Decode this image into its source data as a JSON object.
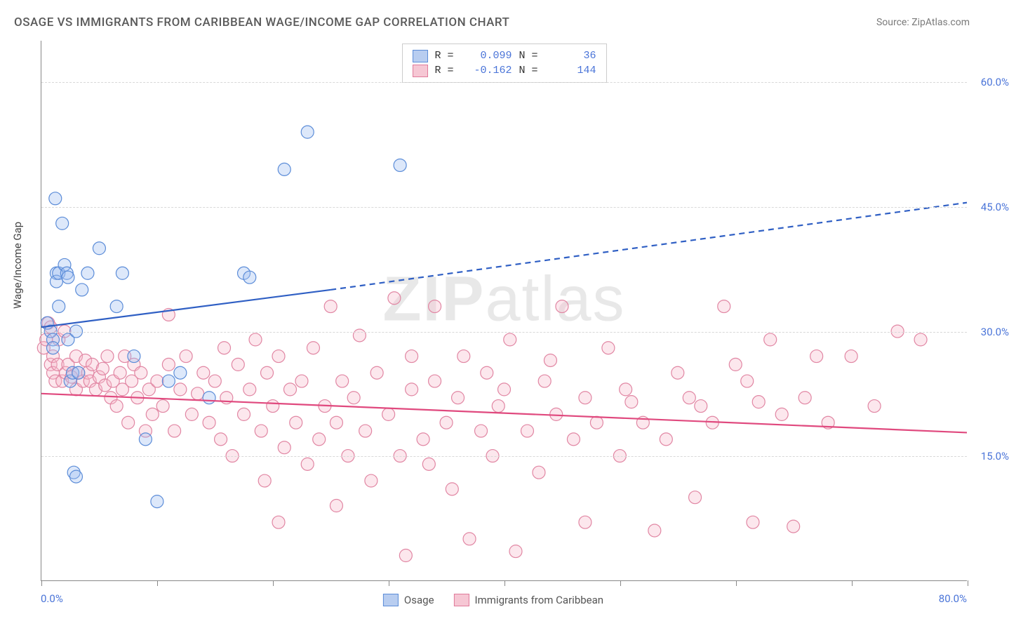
{
  "title": "OSAGE VS IMMIGRANTS FROM CARIBBEAN WAGE/INCOME GAP CORRELATION CHART",
  "source_label": "Source: ZipAtlas.com",
  "watermark": "ZIPatlas",
  "y_axis_label": "Wage/Income Gap",
  "chart": {
    "type": "scatter",
    "background_color": "#ffffff",
    "grid_color": "#d8d8d8",
    "axis_color": "#888888",
    "xlim": [
      0,
      80
    ],
    "ylim": [
      0,
      65
    ],
    "x_origin_label": "0.0%",
    "x_max_label": "80.0%",
    "x_ticks": [
      0,
      10,
      20,
      30,
      40,
      50,
      60,
      70,
      80
    ],
    "y_ticks": [
      {
        "v": 15,
        "label": "15.0%"
      },
      {
        "v": 30,
        "label": "30.0%"
      },
      {
        "v": 45,
        "label": "45.0%"
      },
      {
        "v": 60,
        "label": "60.0%"
      }
    ],
    "marker_radius": 9,
    "series": {
      "blue": {
        "name": "Osage",
        "R": "0.099",
        "N": "36",
        "fill": "#9fbef0",
        "stroke": "#5b8cd8",
        "trend": {
          "solid": [
            [
              0,
              30.5
            ],
            [
              25,
              35.0
            ]
          ],
          "dashed": [
            [
              25,
              35.0
            ],
            [
              80,
              45.5
            ]
          ],
          "color": "#2f5fc4",
          "width": 2.2
        },
        "points": [
          [
            0.5,
            31
          ],
          [
            0.8,
            30
          ],
          [
            1.0,
            29
          ],
          [
            1.0,
            28
          ],
          [
            1.2,
            46
          ],
          [
            1.3,
            37
          ],
          [
            1.3,
            36
          ],
          [
            1.5,
            37
          ],
          [
            1.5,
            33
          ],
          [
            1.8,
            43
          ],
          [
            2.0,
            38
          ],
          [
            2.2,
            37
          ],
          [
            2.3,
            36.5
          ],
          [
            2.3,
            29
          ],
          [
            2.5,
            24
          ],
          [
            2.7,
            25
          ],
          [
            2.8,
            13
          ],
          [
            3.0,
            12.5
          ],
          [
            3.0,
            30
          ],
          [
            3.2,
            25
          ],
          [
            3.5,
            35
          ],
          [
            4.0,
            37
          ],
          [
            5.0,
            40
          ],
          [
            6.5,
            33
          ],
          [
            7.0,
            37
          ],
          [
            8.0,
            27
          ],
          [
            9.0,
            17
          ],
          [
            10.0,
            9.5
          ],
          [
            11.0,
            24
          ],
          [
            12.0,
            25
          ],
          [
            14.5,
            22
          ],
          [
            17.5,
            37
          ],
          [
            18.0,
            36.5
          ],
          [
            21.0,
            49.5
          ],
          [
            23.0,
            54
          ],
          [
            31.0,
            50
          ]
        ]
      },
      "pink": {
        "name": "Immigrants from Caribbean",
        "R": "-0.162",
        "N": "144",
        "fill": "#f5b9cb",
        "stroke": "#e186a3",
        "trend": {
          "solid": [
            [
              0,
              22.5
            ],
            [
              80,
              17.8
            ]
          ],
          "color": "#e0497e",
          "width": 2.2
        },
        "points": [
          [
            0.2,
            28
          ],
          [
            0.4,
            29
          ],
          [
            0.6,
            31
          ],
          [
            0.8,
            30.5
          ],
          [
            0.8,
            26
          ],
          [
            1.0,
            27
          ],
          [
            1.0,
            25
          ],
          [
            1.2,
            24
          ],
          [
            1.4,
            26
          ],
          [
            1.5,
            29
          ],
          [
            1.8,
            24
          ],
          [
            2.0,
            30
          ],
          [
            2.1,
            25
          ],
          [
            2.3,
            26
          ],
          [
            2.6,
            24.5
          ],
          [
            3.0,
            23
          ],
          [
            3.0,
            27
          ],
          [
            3.2,
            25
          ],
          [
            3.6,
            24
          ],
          [
            3.8,
            26.5
          ],
          [
            4.0,
            25
          ],
          [
            4.2,
            24
          ],
          [
            4.4,
            26
          ],
          [
            4.7,
            23
          ],
          [
            5.0,
            24.5
          ],
          [
            5.3,
            25.5
          ],
          [
            5.5,
            23.5
          ],
          [
            5.7,
            27
          ],
          [
            6.0,
            22
          ],
          [
            6.2,
            24
          ],
          [
            6.5,
            21
          ],
          [
            6.8,
            25
          ],
          [
            7.0,
            23
          ],
          [
            7.2,
            27
          ],
          [
            7.5,
            19
          ],
          [
            7.8,
            24
          ],
          [
            8.0,
            26
          ],
          [
            8.3,
            22
          ],
          [
            8.6,
            25
          ],
          [
            9.0,
            18
          ],
          [
            9.3,
            23
          ],
          [
            9.6,
            20
          ],
          [
            10.0,
            24
          ],
          [
            10.5,
            21
          ],
          [
            11.0,
            26
          ],
          [
            11.0,
            32
          ],
          [
            11.5,
            18
          ],
          [
            12.0,
            23
          ],
          [
            12.5,
            27
          ],
          [
            13.0,
            20
          ],
          [
            13.5,
            22.5
          ],
          [
            14.0,
            25
          ],
          [
            14.5,
            19
          ],
          [
            15.0,
            24
          ],
          [
            15.5,
            17
          ],
          [
            15.8,
            28
          ],
          [
            16.0,
            22
          ],
          [
            16.5,
            15
          ],
          [
            17.0,
            26
          ],
          [
            17.5,
            20
          ],
          [
            18.0,
            23
          ],
          [
            18.5,
            29
          ],
          [
            19.0,
            18
          ],
          [
            19.3,
            12
          ],
          [
            19.5,
            25
          ],
          [
            20.0,
            21
          ],
          [
            20.5,
            7
          ],
          [
            20.5,
            27
          ],
          [
            21.0,
            16
          ],
          [
            21.5,
            23
          ],
          [
            22.0,
            19
          ],
          [
            22.5,
            24
          ],
          [
            23.0,
            14
          ],
          [
            23.5,
            28
          ],
          [
            24.0,
            17
          ],
          [
            24.5,
            21
          ],
          [
            25.0,
            33
          ],
          [
            25.5,
            19
          ],
          [
            25.5,
            9
          ],
          [
            26.0,
            24
          ],
          [
            26.5,
            15
          ],
          [
            27.0,
            22
          ],
          [
            27.5,
            29.5
          ],
          [
            28.0,
            18
          ],
          [
            28.5,
            12
          ],
          [
            29.0,
            25
          ],
          [
            30.0,
            20
          ],
          [
            30.5,
            34
          ],
          [
            31.0,
            15
          ],
          [
            31.5,
            3
          ],
          [
            32.0,
            23
          ],
          [
            32.0,
            27
          ],
          [
            33.0,
            17
          ],
          [
            33.5,
            14
          ],
          [
            34.0,
            33
          ],
          [
            34.0,
            24
          ],
          [
            35.0,
            19
          ],
          [
            35.5,
            11
          ],
          [
            36.0,
            22
          ],
          [
            36.5,
            27
          ],
          [
            37.0,
            5
          ],
          [
            38.0,
            18
          ],
          [
            38.5,
            25
          ],
          [
            39.0,
            15
          ],
          [
            39.5,
            21
          ],
          [
            40.0,
            23
          ],
          [
            40.5,
            29
          ],
          [
            41.0,
            3.5
          ],
          [
            42.0,
            18
          ],
          [
            43.0,
            13
          ],
          [
            43.5,
            24
          ],
          [
            44.0,
            26.5
          ],
          [
            44.5,
            20
          ],
          [
            45.0,
            33
          ],
          [
            46.0,
            17
          ],
          [
            47.0,
            22
          ],
          [
            47.0,
            7
          ],
          [
            48.0,
            19
          ],
          [
            49.0,
            28
          ],
          [
            50.0,
            15
          ],
          [
            50.5,
            23
          ],
          [
            51.0,
            21.5
          ],
          [
            52.0,
            19
          ],
          [
            53.0,
            6
          ],
          [
            54.0,
            17
          ],
          [
            55.0,
            25
          ],
          [
            56.0,
            22
          ],
          [
            56.5,
            10
          ],
          [
            57.0,
            21
          ],
          [
            58.0,
            19
          ],
          [
            59.0,
            33
          ],
          [
            60.0,
            26
          ],
          [
            61.0,
            24
          ],
          [
            61.5,
            7
          ],
          [
            62.0,
            21.5
          ],
          [
            63.0,
            29
          ],
          [
            64.0,
            20
          ],
          [
            65.0,
            6.5
          ],
          [
            66.0,
            22
          ],
          [
            67.0,
            27
          ],
          [
            68.0,
            19
          ],
          [
            70.0,
            27
          ],
          [
            72.0,
            21
          ],
          [
            74.0,
            30
          ],
          [
            76.0,
            29
          ]
        ]
      }
    }
  },
  "legend_top_labels": {
    "R": "R =",
    "N": "N ="
  },
  "legend_bottom": [
    "Osage",
    "Immigrants from Caribbean"
  ]
}
